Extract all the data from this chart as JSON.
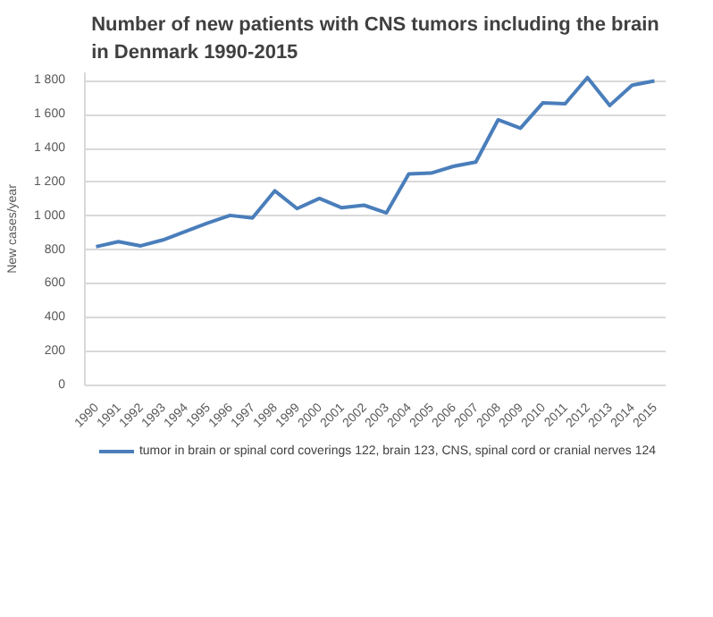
{
  "chart_data": {
    "type": "line",
    "title": "Number of new patients with CNS tumors including the brain in Denmark 1990-2015",
    "ylabel": "New cases/year",
    "categories": [
      "1990",
      "1991",
      "1992",
      "1993",
      "1994",
      "1995",
      "1996",
      "1997",
      "1998",
      "1999",
      "2000",
      "2001",
      "2002",
      "2003",
      "2004",
      "2005",
      "2006",
      "2007",
      "2008",
      "2009",
      "2010",
      "2011",
      "2012",
      "2013",
      "2014",
      "2015"
    ],
    "series": [
      {
        "name": "tumor in brain or spinal cord coverings 122, brain 123, CNS, spinal cord or cranial nerves 124",
        "color": "#4a7ebb",
        "values": [
          820,
          850,
          825,
          860,
          910,
          960,
          1005,
          990,
          1150,
          1045,
          1105,
          1050,
          1065,
          1020,
          1250,
          1255,
          1295,
          1320,
          1570,
          1520,
          1670,
          1665,
          1820,
          1655,
          1775,
          1800
        ]
      }
    ],
    "ylim": [
      0,
      1850
    ],
    "yticks": [
      0,
      200,
      400,
      600,
      800,
      {
        "value": 1000,
        "label": "1 000"
      },
      {
        "value": 1200,
        "label": "1 200"
      },
      {
        "value": 1400,
        "label": "1 400"
      },
      {
        "value": 1600,
        "label": "1 600"
      },
      {
        "value": 1800,
        "label": "1 800"
      }
    ],
    "grid": "y",
    "legend": "bottom",
    "marker": "none",
    "line_style": "solid"
  }
}
